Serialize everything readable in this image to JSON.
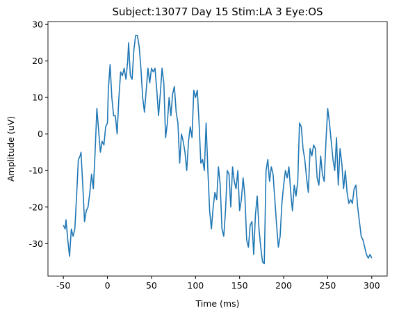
{
  "chart_data": {
    "type": "line",
    "title": "Subject:13077 Day 15 Stim:LA 3 Eye:OS",
    "x_label": "Time (ms)",
    "y_label": "Amplitude (uV)",
    "xlim": [
      -67.5,
      317.5
    ],
    "ylim": [
      -38.9,
      30.8
    ],
    "xticks": [
      -50,
      0,
      50,
      100,
      150,
      200,
      250,
      300
    ],
    "yticks": [
      -30,
      -20,
      -10,
      0,
      10,
      20,
      30
    ],
    "series": [
      {
        "color": "#1f77b4",
        "x": [
          -50,
          -48,
          -47,
          -45,
          -43,
          -41,
          -39,
          -37,
          -35,
          -33,
          -31,
          -30,
          -28,
          -26,
          -24,
          -22,
          -20,
          -18,
          -16,
          -14,
          -12,
          -10,
          -8,
          -6,
          -4,
          -2,
          0,
          1,
          3,
          5,
          7,
          9,
          11,
          13,
          15,
          17,
          19,
          21,
          23,
          24,
          26,
          28,
          30,
          32,
          34,
          36,
          38,
          40,
          42,
          44,
          46,
          48,
          50,
          52,
          54,
          56,
          58,
          60,
          62,
          64,
          66,
          68,
          70,
          72,
          74,
          76,
          78,
          80,
          82,
          84,
          86,
          88,
          90,
          92,
          94,
          96,
          98,
          100,
          102,
          104,
          106,
          108,
          110,
          112,
          114,
          116,
          118,
          120,
          122,
          124,
          126,
          128,
          130,
          132,
          134,
          136,
          138,
          140,
          142,
          144,
          146,
          148,
          150,
          152,
          154,
          156,
          158,
          160,
          162,
          164,
          166,
          168,
          170,
          172,
          174,
          176,
          178,
          180,
          182,
          184,
          186,
          188,
          190,
          192,
          194,
          196,
          198,
          200,
          202,
          204,
          206,
          208,
          210,
          212,
          214,
          216,
          218,
          220,
          222,
          224,
          226,
          228,
          230,
          232,
          234,
          236,
          238,
          240,
          242,
          244,
          246,
          248,
          250,
          252,
          254,
          256,
          258,
          260,
          262,
          264,
          266,
          268,
          270,
          272,
          274,
          276,
          278,
          280,
          282,
          284,
          286,
          288,
          290,
          292,
          294,
          296,
          298,
          300
        ],
        "values": [
          -25,
          -26,
          -23.5,
          -29,
          -33.5,
          -26,
          -28,
          -26,
          -17,
          -7,
          -6,
          -5,
          -14,
          -24,
          -21,
          -20,
          -16,
          -11,
          -15,
          -5,
          7,
          1,
          -5,
          -2,
          -3,
          2,
          3,
          12,
          19,
          10,
          5,
          5,
          0,
          10,
          17,
          16,
          18,
          15,
          20,
          25,
          16,
          15,
          23,
          27,
          27,
          24,
          18,
          10,
          6,
          12,
          18,
          14,
          18,
          17,
          18,
          12,
          5,
          11,
          18,
          14,
          -1,
          3,
          10,
          5,
          11,
          13,
          6,
          3,
          -8,
          0,
          -2,
          -5,
          -10,
          -2,
          2,
          -1,
          12,
          10,
          12,
          3,
          -8,
          -7,
          -10,
          3,
          -10,
          -21,
          -26,
          -20,
          -16,
          -18,
          -9,
          -14,
          -26,
          -28,
          -21,
          -10,
          -11,
          -20,
          -9,
          -13,
          -15,
          -10,
          -21,
          -18,
          -12,
          -17,
          -29,
          -31,
          -25,
          -24,
          -33,
          -22,
          -17,
          -26,
          -31,
          -35,
          -35.5,
          -10,
          -7,
          -13,
          -9,
          -11,
          -18,
          -25,
          -31,
          -28,
          -19,
          -14,
          -10,
          -12,
          -9,
          -16,
          -21,
          -14,
          -17,
          -13,
          3,
          2,
          -4,
          -7,
          -12,
          -16,
          -4,
          -6,
          -3,
          -4,
          -12,
          -14,
          -6,
          -11,
          -13,
          -2,
          7,
          3,
          -2,
          -7,
          -10,
          -1,
          -14,
          -4,
          -8,
          -15,
          -10,
          -16,
          -19,
          -18,
          -19,
          -15,
          -14,
          -20,
          -24,
          -28,
          -29,
          -31,
          -33,
          -34,
          -33,
          -34
        ]
      }
    ]
  }
}
